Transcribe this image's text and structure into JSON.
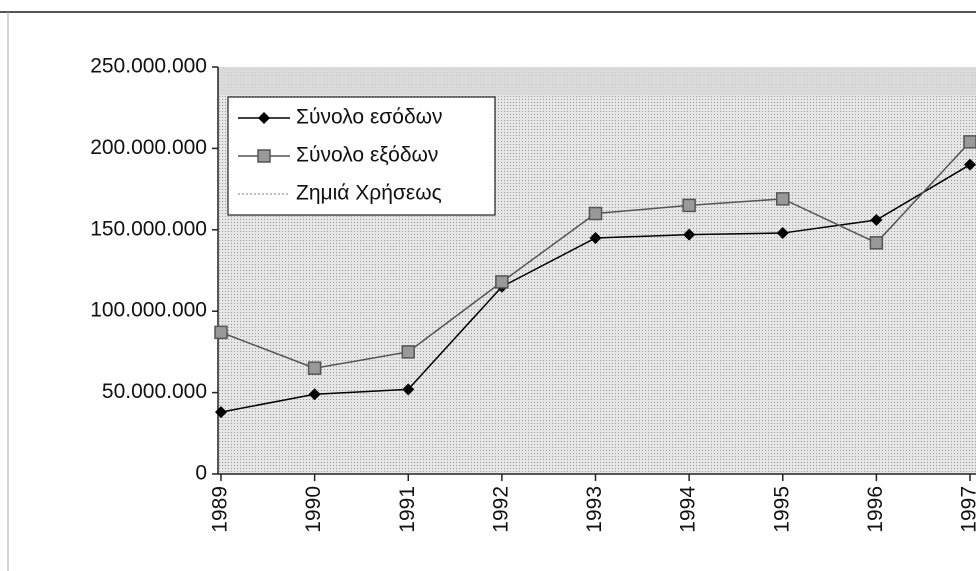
{
  "chart_data": {
    "type": "line",
    "categories": [
      "1989",
      "1990",
      "1991",
      "1992",
      "1993",
      "1994",
      "1995",
      "1996",
      "1997"
    ],
    "series": [
      {
        "name": "Σύνολο εσόδων",
        "color": "#000000",
        "marker": "diamond",
        "values": [
          38000000,
          49000000,
          52000000,
          115000000,
          145000000,
          147000000,
          148000000,
          156000000,
          190000000
        ]
      },
      {
        "name": "Σύνολο εξόδων",
        "color": "#555555",
        "marker": "square",
        "values": [
          87000000,
          65000000,
          75000000,
          118000000,
          160000000,
          165000000,
          169000000,
          142000000,
          204000000
        ]
      },
      {
        "name": "Ζημιά Χρήσεως",
        "color": "#aaaaaa",
        "marker": "none",
        "values": [
          null,
          null,
          null,
          null,
          null,
          null,
          null,
          null,
          null
        ]
      }
    ],
    "ylim": [
      0,
      250000000
    ],
    "yticks": [
      0,
      {
        "value": 50000000,
        "label": "50.000.000"
      },
      {
        "value": 100000000,
        "label": "100.000.000"
      },
      {
        "value": 150000000,
        "label": "150.000.000"
      },
      {
        "value": 200000000,
        "label": "200.000.000"
      },
      {
        "value": 250000000,
        "label": "250.000.000"
      }
    ],
    "legend": "top-left"
  }
}
